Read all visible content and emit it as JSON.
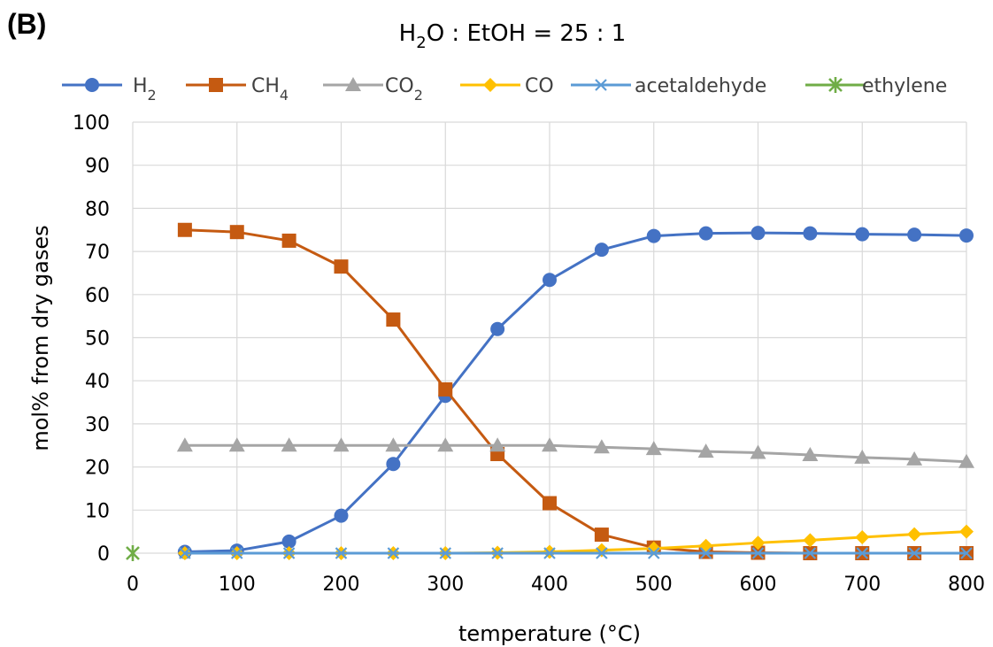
{
  "chart_data": {
    "type": "line",
    "panel_label": "(B)",
    "title": {
      "prefix": "H",
      "sub": "2",
      "suffix": "O : EtOH = 25 : 1"
    },
    "xlabel": "temperature (°C)",
    "ylabel": "mol% from dry gases",
    "xlim": [
      0,
      800
    ],
    "ylim": [
      0,
      100
    ],
    "xticks": [
      0,
      100,
      200,
      300,
      400,
      500,
      600,
      700,
      800
    ],
    "yticks": [
      0,
      10,
      20,
      30,
      40,
      50,
      60,
      70,
      80,
      90,
      100
    ],
    "grid": true,
    "legend_position": "top",
    "series": [
      {
        "name": "H",
        "sub": "2",
        "color": "#4472C4",
        "marker": "circle",
        "x": [
          50,
          100,
          150,
          200,
          250,
          300,
          350,
          400,
          450,
          500,
          550,
          600,
          650,
          700,
          750,
          800
        ],
        "y": [
          0.3,
          0.6,
          2.7,
          8.7,
          20.7,
          36.5,
          52.0,
          63.4,
          70.4,
          73.6,
          74.2,
          74.3,
          74.2,
          74.0,
          73.9,
          73.7
        ]
      },
      {
        "name": "CH",
        "sub": "4",
        "color": "#C55A11",
        "marker": "square",
        "x": [
          50,
          100,
          150,
          200,
          250,
          300,
          350,
          400,
          450,
          500,
          550,
          600,
          650,
          700,
          750,
          800
        ],
        "y": [
          75.0,
          74.5,
          72.5,
          66.5,
          54.2,
          38.0,
          23.0,
          11.6,
          4.3,
          1.3,
          0.3,
          0.1,
          0.0,
          0.0,
          0.0,
          0.0
        ]
      },
      {
        "name": "CO",
        "sub": "2",
        "color": "#A5A5A5",
        "marker": "triangle",
        "x": [
          50,
          100,
          150,
          200,
          250,
          300,
          350,
          400,
          450,
          500,
          550,
          600,
          650,
          700,
          750,
          800
        ],
        "y": [
          25.0,
          25.0,
          25.0,
          25.0,
          25.0,
          25.0,
          25.0,
          25.0,
          24.6,
          24.2,
          23.6,
          23.3,
          22.8,
          22.2,
          21.8,
          21.2
        ]
      },
      {
        "name": "CO",
        "sub": "",
        "color": "#FFC000",
        "marker": "diamond",
        "x": [
          50,
          100,
          150,
          200,
          250,
          300,
          350,
          400,
          450,
          500,
          550,
          600,
          650,
          700,
          750,
          800
        ],
        "y": [
          0.0,
          0.0,
          0.0,
          0.0,
          0.0,
          0.0,
          0.1,
          0.3,
          0.7,
          1.1,
          1.7,
          2.4,
          3.0,
          3.7,
          4.4,
          5.0
        ]
      },
      {
        "name": "acetaldehyde",
        "sub": "",
        "color": "#5B9BD5",
        "marker": "asterisk",
        "x": [
          50,
          100,
          150,
          200,
          250,
          300,
          350,
          400,
          450,
          500,
          550,
          600,
          650,
          700,
          750,
          800
        ],
        "y": [
          0,
          0,
          0,
          0,
          0,
          0,
          0,
          0,
          0,
          0,
          0,
          0,
          0,
          0,
          0,
          0
        ]
      },
      {
        "name": "ethylene",
        "sub": "",
        "color": "#70AD47",
        "marker": "star",
        "x": [
          0
        ],
        "y": [
          0
        ]
      }
    ]
  }
}
